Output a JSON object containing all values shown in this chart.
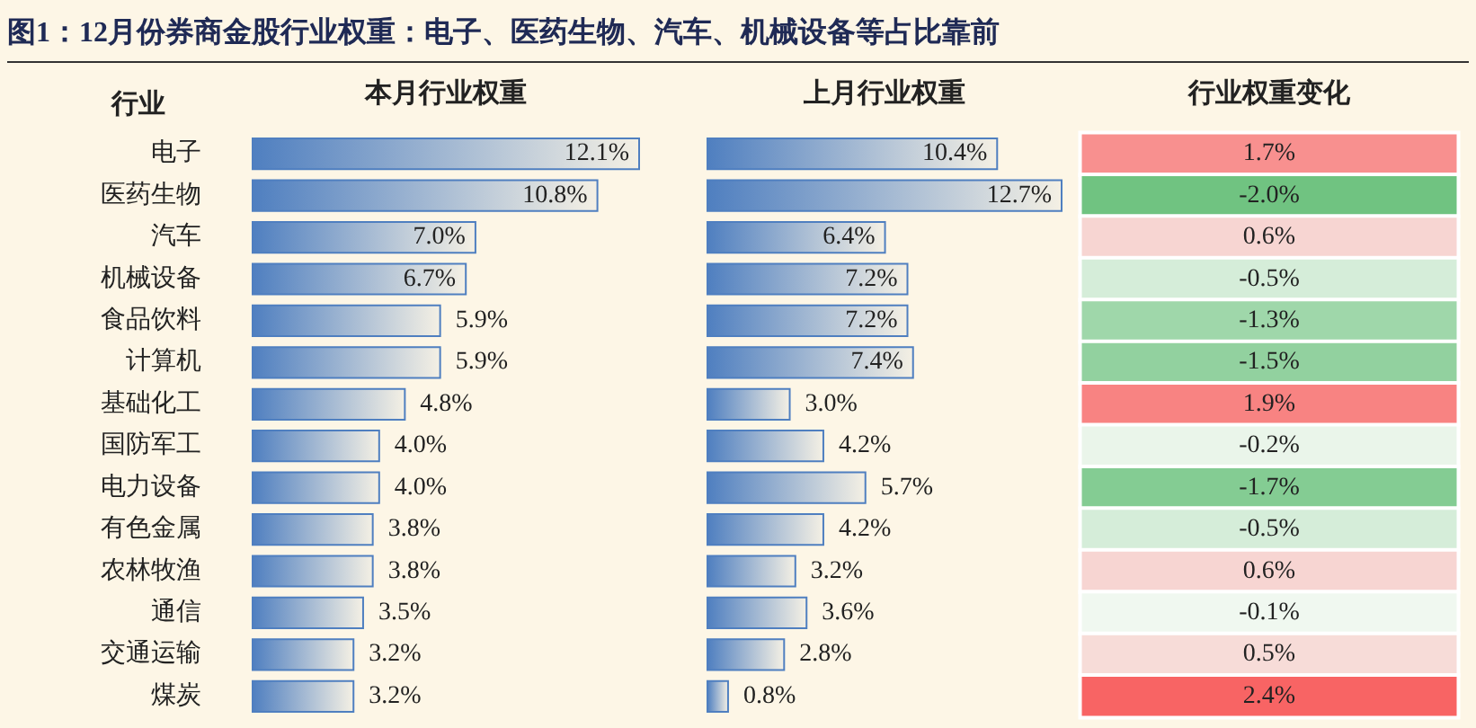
{
  "chart_data": [
    {
      "type": "bar",
      "orientation": "horizontal",
      "title": "图1：12月份券商金股行业权重：电子、医药生物、汽车、机械设备等占比靠前",
      "xlabel": "本月行业权重",
      "ylabel": "行业",
      "tick_labels": "y",
      "color": "#4f7fc0",
      "categories": [
        "电子",
        "医药生物",
        "汽车",
        "机械设备",
        "食品饮料",
        "计算机",
        "基础化工",
        "国防军工",
        "电力设备",
        "有色金属",
        "农林牧渔",
        "通信",
        "交通运输",
        "煤炭"
      ],
      "values": [
        12.1,
        10.8,
        7.0,
        6.7,
        5.9,
        5.9,
        4.8,
        4.0,
        4.0,
        3.8,
        3.8,
        3.5,
        3.2,
        3.2
      ],
      "value_labels": [
        "12.1%",
        "10.8%",
        "7.0%",
        "6.7%",
        "5.9%",
        "5.9%",
        "4.8%",
        "4.0%",
        "4.0%",
        "3.8%",
        "3.8%",
        "3.5%",
        "3.2%",
        "3.2%"
      ]
    },
    {
      "type": "bar",
      "orientation": "horizontal",
      "xlabel": "上月行业权重",
      "tick_labels": "y",
      "color": "#4f7fc0",
      "categories": [
        null,
        null,
        null,
        null,
        null,
        null,
        null,
        null,
        null,
        null,
        null,
        null,
        null,
        null
      ],
      "values": [
        10.4,
        12.7,
        6.4,
        7.2,
        7.2,
        7.4,
        3.0,
        4.2,
        5.7,
        4.2,
        3.2,
        3.6,
        2.8,
        0.8
      ],
      "value_labels": [
        "10.4%",
        "12.7%",
        "6.4%",
        "7.2%",
        "7.2%",
        "7.4%",
        "3.0%",
        "4.2%",
        "5.7%",
        "4.2%",
        "3.2%",
        "3.6%",
        "2.8%",
        "0.8%"
      ]
    },
    {
      "type": "heatmap",
      "xlabel": "行业权重变化",
      "categories": [
        null
      ],
      "y_categories": [
        null,
        null,
        null,
        null,
        null,
        null,
        null,
        null,
        null,
        null,
        null,
        null,
        null,
        null
      ],
      "cells": [
        [
          1.7
        ],
        [
          -2.0
        ],
        [
          0.6
        ],
        [
          -0.5
        ],
        [
          -1.3
        ],
        [
          -1.5
        ],
        [
          1.9
        ],
        [
          -0.2
        ],
        [
          -1.7
        ],
        [
          -0.5
        ],
        [
          0.6
        ],
        [
          -0.1
        ],
        [
          0.5
        ],
        [
          2.4
        ]
      ],
      "cell_labels": [
        [
          "1.7%"
        ],
        [
          "-2.0%"
        ],
        [
          "0.6%"
        ],
        [
          "-0.5%"
        ],
        [
          "-1.3%"
        ],
        [
          "-1.5%"
        ],
        [
          "1.9%"
        ],
        [
          "-0.2%"
        ],
        [
          "-1.7%"
        ],
        [
          "-0.5%"
        ],
        [
          "0.6%"
        ],
        [
          "-0.1%"
        ],
        [
          "0.5%"
        ],
        [
          "2.4%"
        ]
      ]
    }
  ]
}
